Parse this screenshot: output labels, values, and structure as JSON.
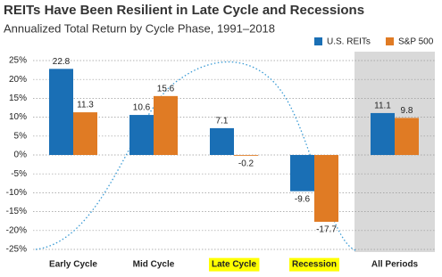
{
  "chart_data": {
    "type": "bar",
    "title": "REITs Have Been Resilient in Late Cycle and Recessions",
    "subtitle": "Annualized Total Return by Cycle Phase, 1991–2018",
    "categories": [
      "Early Cycle",
      "Mid Cycle",
      "Late Cycle",
      "Recession",
      "All Periods"
    ],
    "highlight": [
      false,
      false,
      true,
      true,
      false
    ],
    "highlight_color": "#ffff00",
    "shaded": [
      false,
      false,
      false,
      false,
      true
    ],
    "shade_color": "#d9d9d9",
    "series": [
      {
        "name": "U.S. REITs",
        "color": "#1a6fb5",
        "values": [
          22.8,
          10.6,
          7.1,
          -9.6,
          11.1
        ]
      },
      {
        "name": "S&P 500",
        "color": "#e07b24",
        "values": [
          11.3,
          15.6,
          -0.2,
          -17.7,
          9.8
        ]
      }
    ],
    "ylim": [
      -25,
      25
    ],
    "yticks": [
      {
        "value": 25,
        "label": "25%"
      },
      {
        "value": 20,
        "label": "20%"
      },
      {
        "value": 15,
        "label": "15%"
      },
      {
        "value": 10,
        "label": "10%"
      },
      {
        "value": 5,
        "label": "5%"
      },
      {
        "value": 0,
        "label": "0%"
      },
      {
        "value": -5,
        "label": "-5%"
      },
      {
        "value": -10,
        "label": "-10%"
      },
      {
        "value": -15,
        "label": "-15%"
      },
      {
        "value": -20,
        "label": "-20%"
      },
      {
        "value": -25,
        "label": "-25%"
      }
    ],
    "grid": true,
    "legend": "top-right"
  }
}
